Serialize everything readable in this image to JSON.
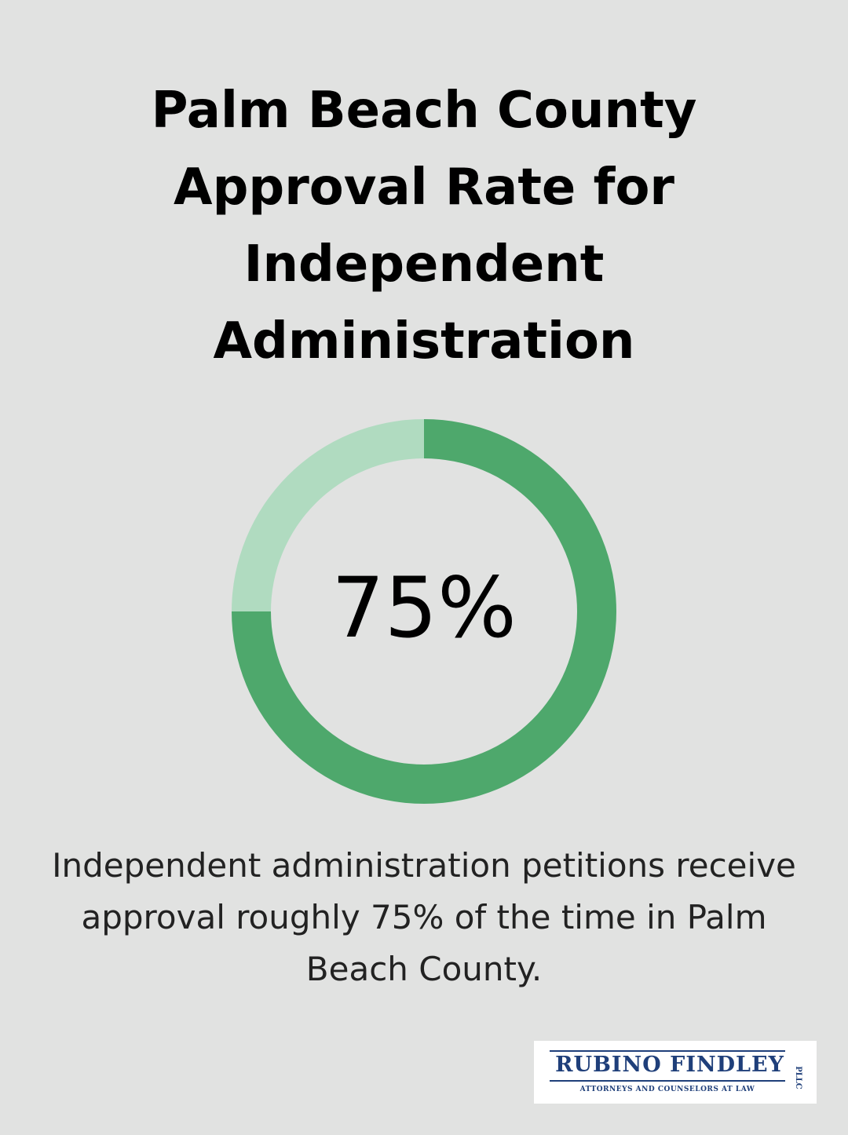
{
  "chart_data": {
    "type": "pie",
    "title": "Palm Beach County Approval Rate for Independent Administration",
    "center_label": "75%",
    "slices": [
      {
        "value": 75,
        "color": "#4ea86c"
      },
      {
        "value": 25,
        "color": "#b0dbc0"
      }
    ],
    "caption": "Independent administration petitions receive approval roughly 75% of the time in Palm Beach County."
  },
  "logo": {
    "name": "RUBINO FINDLEY",
    "suffix": "PLLC",
    "tagline": "ATTORNEYS AND COUNSELORS AT LAW",
    "color": "#1f3f7a"
  },
  "colors": {
    "background": "#e1e2e1",
    "filled": "#4ea86c",
    "remainder": "#b0dbc0"
  }
}
